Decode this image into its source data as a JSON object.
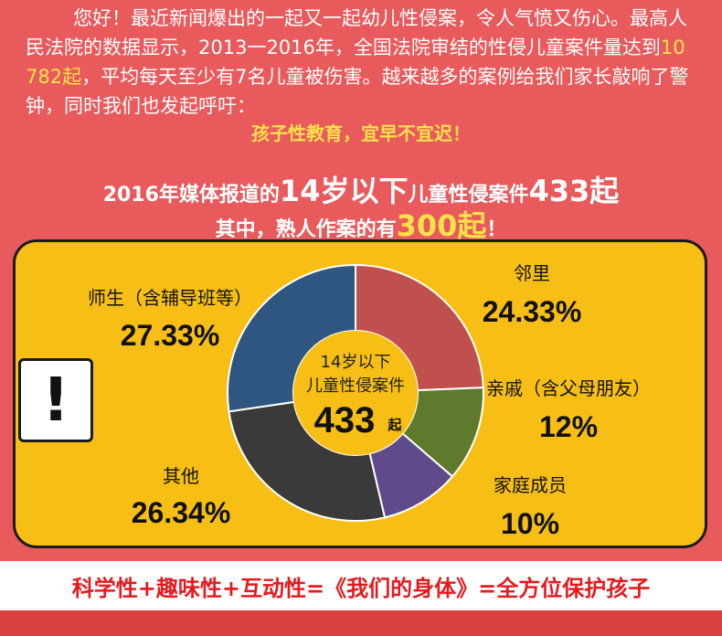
{
  "intro": {
    "part1": "您好！最近新闻爆出的一起又一起幼儿性侵案，令人气愤又伤心。最高人民法院的数据显示，2013一2016年，全国法院审结的性侵儿童案件量达到",
    "highlight": "10 782起",
    "part2": "，平均每天至少有7名儿童被伤害。越来越多的案例给我们家长敲响了警钟，同时我们也发起呼吁："
  },
  "slogan": "孩子性教育，宜早不宜迟！",
  "headline1": {
    "a": "2016年媒体报道的",
    "b": "14岁",
    "c": "以下",
    "d": "儿童性侵案件",
    "e": "433起"
  },
  "headline2": {
    "a": "其中，熟人作案的有",
    "b": "300起",
    "c": "！"
  },
  "warning_symbol": "!",
  "chart_data": {
    "type": "pie",
    "center": {
      "line1": "14岁以下",
      "line2": "儿童性侵案件",
      "total": "433",
      "unit": "起"
    },
    "slices": [
      {
        "name": "邻里",
        "value": 24.33,
        "label": "24.33%",
        "color": "#c0504d"
      },
      {
        "name": "亲戚（含父母朋友）",
        "value": 12,
        "label": "12%",
        "color": "#5f7a2c"
      },
      {
        "name": "家庭成员",
        "value": 10,
        "label": "10%",
        "color": "#5f4b8b"
      },
      {
        "name": "其他",
        "value": 26.34,
        "label": "26.34%",
        "color": "#3a3a3a"
      },
      {
        "name": "师生（含辅导班等）",
        "value": 27.33,
        "label": "27.33%",
        "color": "#2f5581"
      }
    ]
  },
  "footer": "科学性+趣味性+互动性=《我们的身体》=全方位保护孩子",
  "colors": {
    "background": "#e85a5c",
    "panel": "#f7bf15",
    "highlight": "#ffe14a",
    "footer_text": "#e51a1f"
  }
}
